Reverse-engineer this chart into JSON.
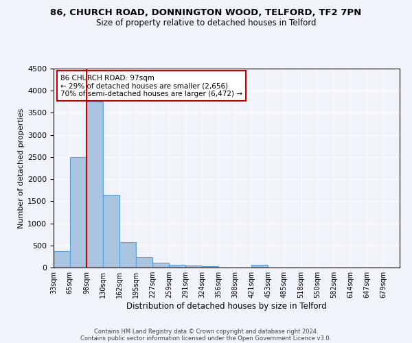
{
  "title1": "86, CHURCH ROAD, DONNINGTON WOOD, TELFORD, TF2 7PN",
  "title2": "Size of property relative to detached houses in Telford",
  "xlabel": "Distribution of detached houses by size in Telford",
  "ylabel": "Number of detached properties",
  "footer1": "Contains HM Land Registry data © Crown copyright and database right 2024.",
  "footer2": "Contains public sector information licensed under the Open Government Licence v3.0.",
  "annotation_title": "86 CHURCH ROAD: 97sqm",
  "annotation_line1": "← 29% of detached houses are smaller (2,656)",
  "annotation_line2": "70% of semi-detached houses are larger (6,472) →",
  "property_size": 97,
  "bar_labels": [
    "33sqm",
    "65sqm",
    "98sqm",
    "130sqm",
    "162sqm",
    "195sqm",
    "227sqm",
    "259sqm",
    "291sqm",
    "324sqm",
    "356sqm",
    "388sqm",
    "421sqm",
    "453sqm",
    "485sqm",
    "518sqm",
    "550sqm",
    "582sqm",
    "614sqm",
    "647sqm",
    "679sqm"
  ],
  "bar_values": [
    380,
    2500,
    3750,
    1650,
    580,
    240,
    105,
    60,
    45,
    35,
    0,
    0,
    55,
    0,
    0,
    0,
    0,
    0,
    0,
    0,
    0
  ],
  "bar_edges": [
    33,
    65,
    98,
    130,
    162,
    195,
    227,
    259,
    291,
    324,
    356,
    388,
    421,
    453,
    485,
    518,
    550,
    582,
    614,
    647,
    679,
    711
  ],
  "bar_color": "#a8c4e0",
  "bar_edgecolor": "#5a9fd4",
  "vline_x": 97,
  "vline_color": "#cc0000",
  "ylim": [
    0,
    4500
  ],
  "background_color": "#f0f4fa",
  "grid_color": "#ffffff",
  "annotation_box_edgecolor": "#cc0000",
  "annotation_box_facecolor": "#ffffff",
  "yticks": [
    0,
    500,
    1000,
    1500,
    2000,
    2500,
    3000,
    3500,
    4000,
    4500
  ]
}
